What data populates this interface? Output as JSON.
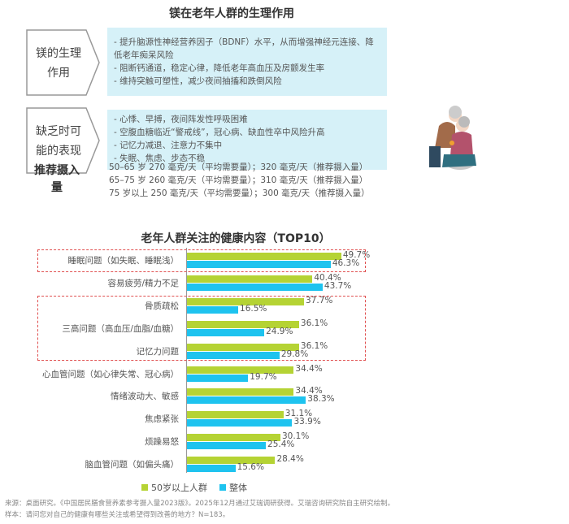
{
  "title1": "镁在老年人群的生理作用",
  "section1": {
    "label": "镁的生理作用",
    "lines": [
      "- 提升脑源性神经营养因子（BDNF）水平，从而增强神经元连接、降低老年痴呆风险",
      "- 阻断钙通道，稳定心律，降低老年高血压及房颤发生率",
      "- 维持突触可塑性，减少夜间抽搐和跌倒风险"
    ]
  },
  "section2": {
    "label": "缺乏时可能的表现",
    "lines": [
      "- 心悸、早搏，夜间阵发性呼吸困难",
      "- 空腹血糖临近“警戒线”，冠心病、缺血性卒中风险升高",
      "- 记忆力减退、注意力不集中",
      "- 失眠、焦虑、步态不稳"
    ]
  },
  "recommend": {
    "label": "推荐摄入量",
    "lines": [
      "50–65 岁  270 毫克/天（平均需要量）；320 毫克/天（推荐摄入量）",
      "65–75 岁  260 毫克/天（平均需要量）；310 毫克/天（推荐摄入量）",
      "75 岁以上 250 毫克/天（平均需要量）；300 毫克/天（推荐摄入量）"
    ]
  },
  "chart_data": {
    "type": "bar",
    "title": "老年人群关注的健康内容（TOP10）",
    "orientation": "horizontal",
    "categories": [
      "睡眠问题（如失眠、睡眠浅）",
      "容易疲劳/精力不足",
      "骨质疏松",
      "三高问题（高血压/血脂/血糖）",
      "记忆力问题",
      "心血管问题（如心律失常、冠心病）",
      "情绪波动大、敏感",
      "焦虑紧张",
      "烦躁易怒",
      "脑血管问题（如偏头痛）"
    ],
    "series": [
      {
        "name": "50岁以上人群",
        "color": "#b5d334",
        "values": [
          49.7,
          40.4,
          37.7,
          36.1,
          36.1,
          34.4,
          34.4,
          31.1,
          30.1,
          28.4
        ]
      },
      {
        "name": "整体",
        "color": "#1ec3ef",
        "values": [
          46.3,
          43.7,
          16.5,
          24.9,
          29.8,
          19.7,
          38.3,
          33.9,
          25.4,
          15.6
        ]
      }
    ],
    "unit": "%",
    "legend": "bottom",
    "highlighted_categories": [
      0,
      3,
      4
    ]
  },
  "footer": {
    "source": "来源：桌面研究。《中国居民膳食营养素参考摄入量2023版》。2025年12月通过艾瑞调研获得。艾瑞咨询研究院自主研究绘制。",
    "sample": "样本：请问您对自己的健康有哪些关注或希望得到改善的地方？N=183。"
  }
}
